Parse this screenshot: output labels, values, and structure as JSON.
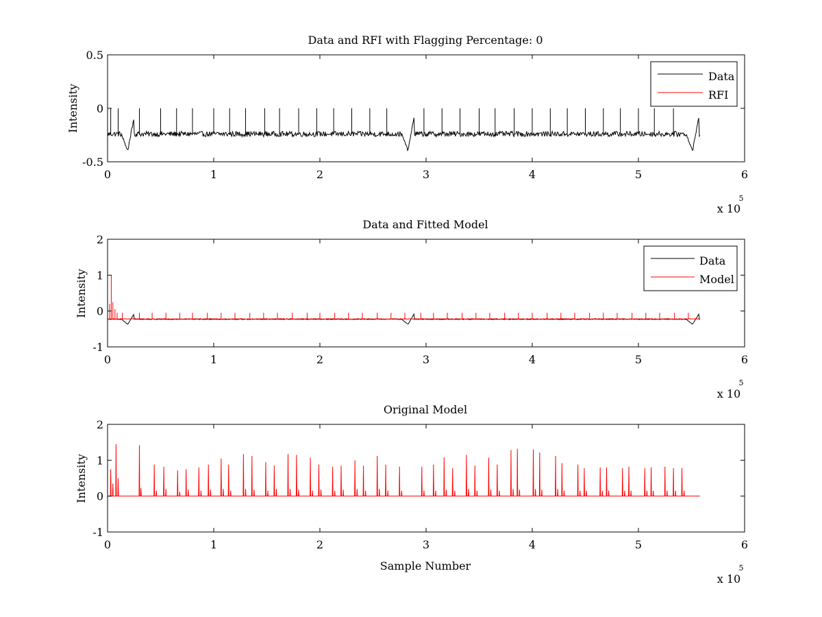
{
  "colors": {
    "data": "#000000",
    "rfi": "#ff0000",
    "model": "#ff0000",
    "axes": "#000000",
    "background": "#ffffff"
  },
  "chart_data": [
    {
      "type": "line",
      "title": "Data and RFI with Flagging Percentage: 0",
      "xlabel": "",
      "ylabel": "Intensity",
      "xlim": [
        0,
        600000
      ],
      "ylim": [
        -0.5,
        0.5
      ],
      "xticks": [
        0,
        100000,
        200000,
        300000,
        400000,
        500000,
        600000
      ],
      "xticklabels": [
        "0",
        "1",
        "2",
        "3",
        "4",
        "5",
        "6"
      ],
      "yticks": [
        -0.5,
        0,
        0.5
      ],
      "yticklabels": [
        "-0.5",
        "0",
        "0.5"
      ],
      "x_multiplier": {
        "base": "x 10",
        "exponent": "5"
      },
      "legend": {
        "placement": "top-right",
        "entries": [
          "Data",
          "RFI"
        ]
      },
      "grid": false,
      "series": [
        {
          "name": "Data",
          "color": "#000000",
          "baseline": -0.24,
          "noise_amplitude": 0.025,
          "x_end": 558000,
          "spikes_x": [
            3000,
            10000,
            30000,
            50000,
            65000,
            80000,
            100000,
            115000,
            130000,
            148000,
            162000,
            180000,
            197000,
            213000,
            230000,
            247000,
            263000,
            298000,
            315000,
            332000,
            350000,
            365000,
            383000,
            400000,
            417000,
            433000,
            450000,
            467000,
            483000,
            500000,
            515000,
            533000
          ],
          "spikes_peak": 0.0,
          "dips": [
            {
              "x": 19000,
              "min": -0.4
            },
            {
              "x": 283000,
              "min": -0.4
            },
            {
              "x": 551000,
              "min": -0.4
            }
          ],
          "ramp_peaks": [
            {
              "x": 25000,
              "y": -0.08
            },
            {
              "x": 289000,
              "y": -0.06
            },
            {
              "x": 557000,
              "y": -0.07
            }
          ]
        },
        {
          "name": "RFI",
          "color": "#ff0000",
          "values": []
        }
      ]
    },
    {
      "type": "line",
      "title": "Data and Fitted Model",
      "xlabel": "",
      "ylabel": "Intensity",
      "xlim": [
        0,
        600000
      ],
      "ylim": [
        -1,
        2
      ],
      "xticks": [
        0,
        100000,
        200000,
        300000,
        400000,
        500000,
        600000
      ],
      "xticklabels": [
        "0",
        "1",
        "2",
        "3",
        "4",
        "5",
        "6"
      ],
      "yticks": [
        -1,
        0,
        1,
        2
      ],
      "yticklabels": [
        "-1",
        "0",
        "1",
        "2"
      ],
      "x_multiplier": {
        "base": "x 10",
        "exponent": "5"
      },
      "legend": {
        "placement": "top-right",
        "entries": [
          "Data",
          "Model"
        ]
      },
      "grid": false,
      "series": [
        {
          "name": "Data",
          "color": "#000000",
          "baseline": -0.23,
          "x_end": 558000,
          "dips": [
            {
              "x": 19000,
              "min": -0.37
            },
            {
              "x": 283000,
              "min": -0.37
            },
            {
              "x": 551000,
              "min": -0.37
            }
          ],
          "ramp_peaks": [
            {
              "x": 25000,
              "y": -0.08
            },
            {
              "x": 289000,
              "y": -0.07
            },
            {
              "x": 557000,
              "y": -0.08
            }
          ]
        },
        {
          "name": "Model",
          "color": "#ff0000",
          "baseline": -0.22,
          "x_end": 558000,
          "early_spikes": [
            {
              "x": 2000,
              "y": 0.2
            },
            {
              "x": 3500,
              "y": 1.0
            },
            {
              "x": 5000,
              "y": 0.25
            },
            {
              "x": 7000,
              "y": 0.05
            },
            {
              "x": 9000,
              "y": -0.05
            }
          ],
          "spikes_x": [
            14000,
            30000,
            42000,
            55000,
            68000,
            80000,
            94000,
            107000,
            120000,
            134000,
            147000,
            160000,
            174000,
            188000,
            200000,
            214000,
            227000,
            240000,
            254000,
            267000,
            280000,
            295000,
            307000,
            320000,
            334000,
            347000,
            360000,
            374000,
            387000,
            400000,
            414000,
            427000,
            440000,
            454000,
            467000,
            480000,
            494000,
            507000,
            520000,
            534000,
            547000
          ],
          "spikes_peak": -0.05
        }
      ]
    },
    {
      "type": "line",
      "title": "Original Model",
      "xlabel": "Sample Number",
      "ylabel": "Intensity",
      "xlim": [
        0,
        600000
      ],
      "ylim": [
        -1,
        2
      ],
      "xticks": [
        0,
        100000,
        200000,
        300000,
        400000,
        500000,
        600000
      ],
      "xticklabels": [
        "0",
        "1",
        "2",
        "3",
        "4",
        "5",
        "6"
      ],
      "yticks": [
        -1,
        0,
        1,
        2
      ],
      "yticklabels": [
        "-1",
        "0",
        "1",
        "2"
      ],
      "x_multiplier": {
        "base": "x 10",
        "exponent": "5"
      },
      "legend": null,
      "grid": false,
      "series": [
        {
          "name": "Model",
          "color": "#ff0000",
          "baseline": 0,
          "x_end": 558000,
          "spikes": [
            [
              3000,
              0.75
            ],
            [
              5000,
              0.35
            ],
            [
              8000,
              1.45
            ],
            [
              10000,
              0.5
            ],
            [
              30000,
              1.42
            ],
            [
              31500,
              0.22
            ],
            [
              44000,
              0.88
            ],
            [
              46000,
              0.15
            ],
            [
              53000,
              0.82
            ],
            [
              55000,
              0.2
            ],
            [
              66000,
              0.72
            ],
            [
              68000,
              0.12
            ],
            [
              74000,
              0.75
            ],
            [
              76000,
              0.18
            ],
            [
              86000,
              0.8
            ],
            [
              88000,
              0.15
            ],
            [
              95000,
              0.88
            ],
            [
              97000,
              0.18
            ],
            [
              107000,
              1.05
            ],
            [
              109000,
              0.2
            ],
            [
              114000,
              0.88
            ],
            [
              116000,
              0.15
            ],
            [
              128000,
              1.17
            ],
            [
              130000,
              0.2
            ],
            [
              136000,
              1.12
            ],
            [
              138000,
              0.18
            ],
            [
              149000,
              0.95
            ],
            [
              151000,
              0.15
            ],
            [
              157000,
              0.85
            ],
            [
              159000,
              0.2
            ],
            [
              170000,
              1.17
            ],
            [
              172000,
              0.2
            ],
            [
              178000,
              1.15
            ],
            [
              180000,
              0.18
            ],
            [
              191000,
              1.07
            ],
            [
              193000,
              0.15
            ],
            [
              199000,
              0.88
            ],
            [
              201000,
              0.18
            ],
            [
              212000,
              0.82
            ],
            [
              214000,
              0.15
            ],
            [
              220000,
              0.85
            ],
            [
              222000,
              0.18
            ],
            [
              233000,
              1.0
            ],
            [
              235000,
              0.2
            ],
            [
              241000,
              0.85
            ],
            [
              243000,
              0.15
            ],
            [
              254000,
              1.12
            ],
            [
              256000,
              0.2
            ],
            [
              262000,
              0.88
            ],
            [
              264000,
              0.15
            ],
            [
              275000,
              0.82
            ],
            [
              277000,
              0.15
            ],
            [
              296000,
              0.82
            ],
            [
              298000,
              0.15
            ],
            [
              307000,
              0.88
            ],
            [
              309000,
              0.15
            ],
            [
              317000,
              1.08
            ],
            [
              319000,
              0.18
            ],
            [
              325000,
              0.78
            ],
            [
              327000,
              0.15
            ],
            [
              338000,
              1.15
            ],
            [
              340000,
              0.2
            ],
            [
              346000,
              0.85
            ],
            [
              348000,
              0.15
            ],
            [
              359000,
              1.07
            ],
            [
              361000,
              0.18
            ],
            [
              367000,
              0.88
            ],
            [
              369000,
              0.15
            ],
            [
              380000,
              1.28
            ],
            [
              382000,
              0.2
            ],
            [
              386000,
              1.32
            ],
            [
              388000,
              0.18
            ],
            [
              401000,
              1.3
            ],
            [
              403000,
              0.2
            ],
            [
              407000,
              1.22
            ],
            [
              409000,
              0.18
            ],
            [
              422000,
              1.12
            ],
            [
              424000,
              0.2
            ],
            [
              428000,
              0.92
            ],
            [
              430000,
              0.15
            ],
            [
              443000,
              0.88
            ],
            [
              445000,
              0.15
            ],
            [
              449000,
              0.78
            ],
            [
              451000,
              0.15
            ],
            [
              464000,
              0.8
            ],
            [
              466000,
              0.15
            ],
            [
              470000,
              0.8
            ],
            [
              472000,
              0.15
            ],
            [
              485000,
              0.78
            ],
            [
              487000,
              0.15
            ],
            [
              491000,
              0.82
            ],
            [
              493000,
              0.15
            ],
            [
              506000,
              0.78
            ],
            [
              508000,
              0.15
            ],
            [
              512000,
              0.8
            ],
            [
              514000,
              0.15
            ],
            [
              525000,
              0.82
            ],
            [
              527000,
              0.15
            ],
            [
              533000,
              0.78
            ],
            [
              535000,
              0.15
            ],
            [
              541000,
              0.78
            ],
            [
              543000,
              0.15
            ]
          ]
        }
      ]
    }
  ]
}
